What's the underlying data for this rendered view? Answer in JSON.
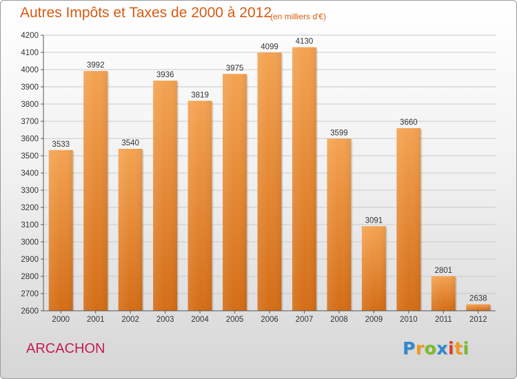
{
  "title": "Autres Impôts et Taxes de 2000 à 2012",
  "subtitle": "(en milliers d'€)",
  "place": "ARCACHON",
  "logo": {
    "letters": [
      "P",
      "r",
      "o",
      "x",
      "i",
      "t",
      "i"
    ],
    "colors": [
      "#2e88d0",
      "#f09a1a",
      "#7cbb2a",
      "#2e88d0",
      "#e33b2a",
      "#f09a1a",
      "#7cbb2a"
    ]
  },
  "colors": {
    "bar_top": "#f4a352",
    "bar_bottom": "#d46d16",
    "title": "#d85a12",
    "place": "#c21b57"
  },
  "chart_data": {
    "type": "bar",
    "title": "Autres Impôts et Taxes de 2000 à 2012",
    "subtitle": "(en milliers d'€)",
    "xlabel": "",
    "ylabel": "",
    "categories": [
      "2000",
      "2001",
      "2002",
      "2003",
      "2004",
      "2005",
      "2006",
      "2007",
      "2008",
      "2009",
      "2010",
      "2011",
      "2012"
    ],
    "values": [
      3533,
      3992,
      3540,
      3936,
      3819,
      3975,
      4099,
      4130,
      3599,
      3091,
      3660,
      2801,
      2638
    ],
    "ylim": [
      2600,
      4200
    ],
    "yticks": [
      2600,
      2700,
      2800,
      2900,
      3000,
      3100,
      3200,
      3300,
      3400,
      3500,
      3600,
      3700,
      3800,
      3900,
      4000,
      4100,
      4200
    ],
    "grid": true,
    "legend": "none"
  }
}
